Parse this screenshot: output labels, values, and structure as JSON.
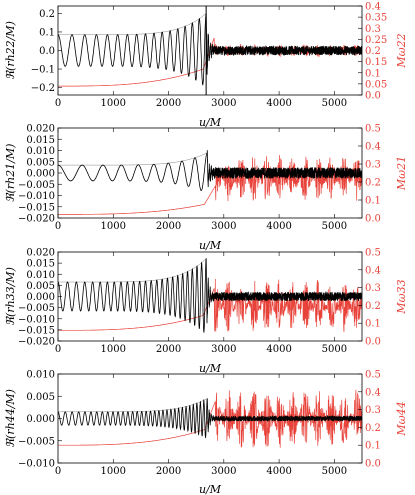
{
  "figure": {
    "x_tick_labels": [
      "0",
      "1000",
      "2000",
      "3000",
      "4000",
      "5000"
    ],
    "xlabel": "u/M"
  },
  "chart_data": [
    {
      "type": "line",
      "panel": "h22",
      "ylabel_left": "ℜ(rh22/M)",
      "ylabel_right": "Mω22",
      "xlim": [
        0,
        5500
      ],
      "ylim_left": [
        -0.24,
        0.24
      ],
      "ylim_right": [
        0.0,
        0.4
      ],
      "left_ticks": [
        "0.2",
        "0.1",
        "0.0",
        "−0.1",
        "−0.2"
      ],
      "left_tick_values": [
        0.2,
        0.1,
        0.0,
        -0.1,
        -0.2
      ],
      "right_ticks": [
        "0.4",
        "0.35",
        "0.3",
        "0.25",
        "0.2",
        "0.15",
        "0.1",
        "0.05",
        "0.0"
      ],
      "right_tick_values": [
        0.4,
        0.35,
        0.3,
        0.25,
        0.2,
        0.15,
        0.1,
        0.05,
        0.0
      ],
      "vline_x": 2680,
      "amp_start": 0.085,
      "amp_peak": 0.2,
      "merger_x": 2680,
      "inspiral_cycles": 16,
      "omega_start": 0.04,
      "omega_merge": 0.26,
      "omega_post": 0.2,
      "omega_noise": 0.03,
      "ringdown_noise": 0.025,
      "colors": {
        "strain": "#000000",
        "frequency": "#e8433a"
      }
    },
    {
      "type": "line",
      "panel": "h21",
      "ylabel_left": "ℜ(rh21/M)",
      "ylabel_right": "Mω21",
      "xlim": [
        0,
        5500
      ],
      "ylim_left": [
        -0.02,
        0.02
      ],
      "ylim_right": [
        0.0,
        0.5
      ],
      "left_ticks": [
        "0.020",
        "0.015",
        "0.010",
        "0.005",
        "0.000",
        "−0.005",
        "−0.010",
        "−0.015",
        "−0.020"
      ],
      "left_tick_values": [
        0.02,
        0.015,
        0.01,
        0.005,
        0.0,
        -0.005,
        -0.01,
        -0.015,
        -0.02
      ],
      "right_ticks": [
        "0.5",
        "0.4",
        "0.3",
        "0.2",
        "0.1",
        "0.0"
      ],
      "right_tick_values": [
        0.5,
        0.4,
        0.3,
        0.2,
        0.1,
        0.0
      ],
      "amp_start": 0.0035,
      "amp_peak": 0.009,
      "merger_x": 2700,
      "inspiral_cycles": 9,
      "offset_left": 0.0,
      "omega_start": 0.02,
      "omega_merge": 0.18,
      "omega_post": 0.22,
      "omega_noise": 0.13,
      "ringdown_noise": 0.0025,
      "colors": {
        "strain": "#000000",
        "frequency": "#e8433a"
      }
    },
    {
      "type": "line",
      "panel": "h33",
      "ylabel_left": "ℜ(rh33/M)",
      "ylabel_right": "Mω33",
      "xlim": [
        0,
        5500
      ],
      "ylim_left": [
        -0.02,
        0.02
      ],
      "ylim_right": [
        0.0,
        0.5
      ],
      "left_ticks": [
        "0.020",
        "0.015",
        "0.010",
        "0.005",
        "0.000",
        "−0.005",
        "−0.010",
        "−0.015",
        "−0.020"
      ],
      "left_tick_values": [
        0.02,
        0.015,
        0.01,
        0.005,
        0.0,
        -0.005,
        -0.01,
        -0.015,
        -0.02
      ],
      "right_ticks": [
        "0.5",
        "0.4",
        "0.3",
        "0.2",
        "0.1",
        "0.0"
      ],
      "right_tick_values": [
        0.5,
        0.4,
        0.3,
        0.2,
        0.1,
        0.0
      ],
      "amp_start": 0.0065,
      "amp_peak": 0.017,
      "merger_x": 2680,
      "inspiral_cycles": 24,
      "offset_left": 0.0,
      "omega_start": 0.06,
      "omega_merge": 0.3,
      "omega_post": 0.2,
      "omega_noise": 0.15,
      "ringdown_noise": 0.002,
      "colors": {
        "strain": "#000000",
        "frequency": "#e8433a"
      }
    },
    {
      "type": "line",
      "panel": "h44",
      "ylabel_left": "ℜ(rh44/M)",
      "ylabel_right": "Mω44",
      "xlim": [
        0,
        5500
      ],
      "ylim_left": [
        -0.01,
        0.01
      ],
      "ylim_right": [
        0.0,
        0.5
      ],
      "left_ticks": [
        "0.010",
        "0.005",
        "0.000",
        "−0.005",
        "−0.010"
      ],
      "left_tick_values": [
        0.01,
        0.005,
        0.0,
        -0.005,
        -0.01
      ],
      "right_ticks": [
        "0.5",
        "0.4",
        "0.3",
        "0.2",
        "0.1",
        "0.0"
      ],
      "right_tick_values": [
        0.5,
        0.4,
        0.3,
        0.2,
        0.1,
        0.0
      ],
      "amp_start": 0.0015,
      "amp_peak": 0.0045,
      "merger_x": 2700,
      "inspiral_cycles": 32,
      "offset_left": 0.0,
      "omega_start": 0.1,
      "omega_merge": 0.35,
      "omega_post": 0.25,
      "omega_noise": 0.17,
      "ringdown_noise": 0.0006,
      "colors": {
        "strain": "#000000",
        "frequency": "#e8433a"
      }
    }
  ]
}
